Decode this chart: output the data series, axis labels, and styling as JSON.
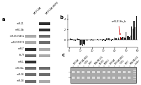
{
  "panel_a_labels": [
    "miR-21",
    "miR-10b",
    "miR-155/146a",
    "miR-210/373",
    "miR-7",
    "let-7f",
    "miR-1",
    "miR-34a",
    "miR-34",
    "miR-18"
  ],
  "panel_a_col_labels": [
    "MCF10A",
    "MCF10A-HER2"
  ],
  "panel_b_title": "b",
  "panel_b_annotation": "miR-21Hs_b",
  "panel_b_n_bars": 60,
  "panel_b_highlighted_bar": 45,
  "panel_c_title": "c",
  "panel_c_n_lanes": 13,
  "panel_c_lane_labels": [
    "MCF10A",
    "MCF10A-HER2",
    "T-47D",
    "MCF7",
    "MDA-MB-231",
    "BT-474",
    "SK-BR-3",
    "MCF10A",
    "MCF10A-HER2",
    "T-47D",
    "MCF7",
    "MDA-MB-231",
    "Ladder"
  ],
  "bg_color": "#f0f0f0",
  "gel_color": "#888888",
  "band_color": "#222222",
  "bar_color": "#222222",
  "red_color": "#cc0000",
  "white": "#ffffff",
  "black": "#000000"
}
